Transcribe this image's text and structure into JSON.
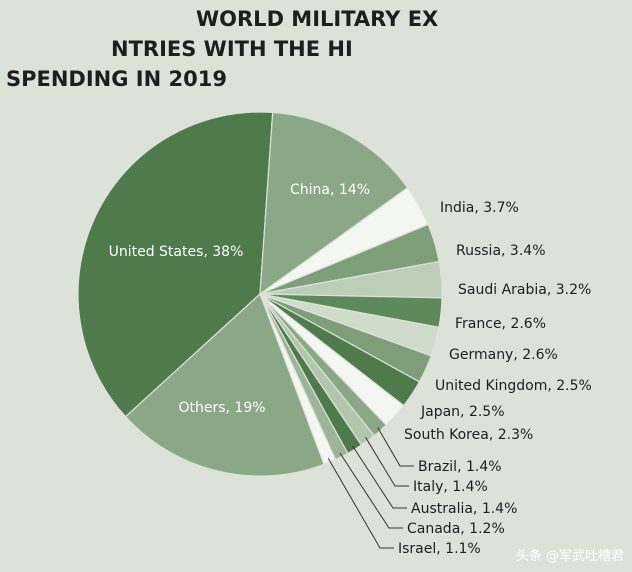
{
  "title_lines": [
    "WORLD MILITARY EX",
    "NTRIES WITH THE HI",
    "SPENDING IN 2019"
  ],
  "watermark": "头条 @军武吐槽君",
  "colors": {
    "dark_green": "#4e7a4c",
    "mid_green": "#8aa886",
    "light_green": "#b9cbb5",
    "pale": "#ffffff",
    "background": "#dde2d9"
  },
  "chart_data": {
    "type": "pie",
    "title": "WORLD MILITARY EX… SPENDING IN 2019",
    "legend": "labels beside slices",
    "slices": [
      {
        "label": "United States, 38%",
        "name": "United States",
        "value": 38,
        "color": "#4e7a4c"
      },
      {
        "label": "China, 14%",
        "name": "China",
        "value": 14,
        "color": "#8aa886"
      },
      {
        "label": "India, 3.7%",
        "name": "India",
        "value": 3.7,
        "color": "#f4f6f2"
      },
      {
        "label": "Russia, 3.4%",
        "name": "Russia",
        "value": 3.4,
        "color": "#7f9f7b"
      },
      {
        "label": "Saudi Arabia, 3.2%",
        "name": "Saudi Arabia",
        "value": 3.2,
        "color": "#bccdb8"
      },
      {
        "label": "France, 2.6%",
        "name": "France",
        "value": 2.6,
        "color": "#5e8a5b"
      },
      {
        "label": "Germany, 2.6%",
        "name": "Germany",
        "value": 2.6,
        "color": "#cfdccc"
      },
      {
        "label": "United Kingdom, 2.5%",
        "name": "United Kingdom",
        "value": 2.5,
        "color": "#7d9e79"
      },
      {
        "label": "Japan, 2.5%",
        "name": "Japan",
        "value": 2.5,
        "color": "#4e7a4c"
      },
      {
        "label": "South Korea, 2.3%",
        "name": "South Korea",
        "value": 2.3,
        "color": "#f4f6f2"
      },
      {
        "label": "Brazil, 1.4%",
        "name": "Brazil",
        "value": 1.4,
        "color": "#8aa886"
      },
      {
        "label": "Italy, 1.4%",
        "name": "Italy",
        "value": 1.4,
        "color": "#b2c6ae"
      },
      {
        "label": "Australia, 1.4%",
        "name": "Australia",
        "value": 1.4,
        "color": "#4e7a4c"
      },
      {
        "label": "Canada, 1.2%",
        "name": "Canada",
        "value": 1.2,
        "color": "#9cb598"
      },
      {
        "label": "Israel, 1.1%",
        "name": "Israel",
        "value": 1.1,
        "color": "#f4f6f2"
      },
      {
        "label": "Others, 19%",
        "name": "Others",
        "value": 19,
        "color": "#8aa886"
      }
    ]
  }
}
